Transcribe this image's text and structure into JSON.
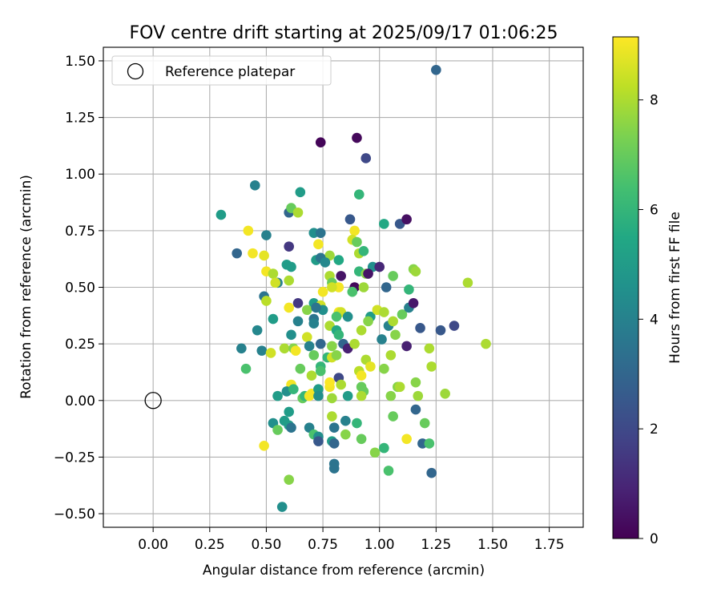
{
  "chart_data": {
    "type": "scatter",
    "title": "FOV centre drift starting at 2025/09/17 01:06:25",
    "xlabel": "Angular distance from reference (arcmin)",
    "ylabel": "Rotation from reference (arcmin)",
    "xlim": [
      -0.22,
      1.9
    ],
    "ylim": [
      -0.56,
      1.56
    ],
    "xticks": [
      0.0,
      0.25,
      0.5,
      0.75,
      1.0,
      1.25,
      1.5,
      1.75
    ],
    "xtick_labels": [
      "0.00",
      "0.25",
      "0.50",
      "0.75",
      "1.00",
      "1.25",
      "1.50",
      "1.75"
    ],
    "yticks": [
      -0.5,
      -0.25,
      0.0,
      0.25,
      0.5,
      0.75,
      1.0,
      1.25,
      1.5
    ],
    "ytick_labels": [
      "−0.50",
      "−0.25",
      "0.00",
      "0.25",
      "0.50",
      "0.75",
      "1.00",
      "1.25",
      "1.50"
    ],
    "grid": true,
    "legend": {
      "position": "top-left",
      "entries": [
        "Reference platepar"
      ]
    },
    "reference_point": {
      "x": 0.0,
      "y": 0.0
    },
    "colorbar": {
      "label": "Hours from first FF file",
      "min": 0,
      "max": 9.15,
      "ticks": [
        0,
        2,
        4,
        6,
        8
      ],
      "colormap": "viridis"
    },
    "series": [
      {
        "color_value_key": "h",
        "points": [
          {
            "x": 1.25,
            "y": 1.46,
            "h": 3.0
          },
          {
            "x": 0.74,
            "y": 1.14,
            "h": 0.1
          },
          {
            "x": 0.9,
            "y": 1.16,
            "h": 0.2
          },
          {
            "x": 0.94,
            "y": 1.07,
            "h": 2.0
          },
          {
            "x": 0.3,
            "y": 0.82,
            "h": 5.0
          },
          {
            "x": 0.45,
            "y": 0.95,
            "h": 4.0
          },
          {
            "x": 0.65,
            "y": 0.92,
            "h": 5.0
          },
          {
            "x": 0.91,
            "y": 0.91,
            "h": 6.0
          },
          {
            "x": 0.6,
            "y": 0.83,
            "h": 3.0
          },
          {
            "x": 0.61,
            "y": 0.85,
            "h": 7.0
          },
          {
            "x": 0.64,
            "y": 0.83,
            "h": 8.0
          },
          {
            "x": 0.87,
            "y": 0.8,
            "h": 2.5
          },
          {
            "x": 1.02,
            "y": 0.78,
            "h": 5.5
          },
          {
            "x": 1.09,
            "y": 0.78,
            "h": 2.5
          },
          {
            "x": 1.12,
            "y": 0.8,
            "h": 0.4
          },
          {
            "x": 0.42,
            "y": 0.75,
            "h": 9.0
          },
          {
            "x": 0.5,
            "y": 0.73,
            "h": 4.0
          },
          {
            "x": 0.71,
            "y": 0.74,
            "h": 4.5
          },
          {
            "x": 0.74,
            "y": 0.74,
            "h": 3.5
          },
          {
            "x": 0.89,
            "y": 0.75,
            "h": 9.0
          },
          {
            "x": 0.88,
            "y": 0.71,
            "h": 8.5
          },
          {
            "x": 0.9,
            "y": 0.7,
            "h": 7.0
          },
          {
            "x": 0.6,
            "y": 0.68,
            "h": 1.5
          },
          {
            "x": 0.73,
            "y": 0.69,
            "h": 9.0
          },
          {
            "x": 0.37,
            "y": 0.65,
            "h": 3.0
          },
          {
            "x": 0.44,
            "y": 0.65,
            "h": 9.0
          },
          {
            "x": 0.49,
            "y": 0.64,
            "h": 8.8
          },
          {
            "x": 0.78,
            "y": 0.64,
            "h": 7.8
          },
          {
            "x": 0.91,
            "y": 0.65,
            "h": 8.0
          },
          {
            "x": 0.93,
            "y": 0.66,
            "h": 6.0
          },
          {
            "x": 0.72,
            "y": 0.62,
            "h": 5.0
          },
          {
            "x": 0.74,
            "y": 0.63,
            "h": 3.5
          },
          {
            "x": 0.76,
            "y": 0.61,
            "h": 4.2
          },
          {
            "x": 0.82,
            "y": 0.62,
            "h": 5.5
          },
          {
            "x": 0.59,
            "y": 0.6,
            "h": 5.0
          },
          {
            "x": 0.61,
            "y": 0.59,
            "h": 5.0
          },
          {
            "x": 0.97,
            "y": 0.59,
            "h": 4.5
          },
          {
            "x": 1.0,
            "y": 0.59,
            "h": 1.0
          },
          {
            "x": 0.5,
            "y": 0.57,
            "h": 9.0
          },
          {
            "x": 0.53,
            "y": 0.56,
            "h": 8.0
          },
          {
            "x": 0.91,
            "y": 0.57,
            "h": 6.0
          },
          {
            "x": 0.94,
            "y": 0.56,
            "h": 7.5
          },
          {
            "x": 0.95,
            "y": 0.56,
            "h": 0.5
          },
          {
            "x": 1.06,
            "y": 0.55,
            "h": 7.0
          },
          {
            "x": 1.15,
            "y": 0.58,
            "h": 7.5
          },
          {
            "x": 1.16,
            "y": 0.57,
            "h": 7.8
          },
          {
            "x": 0.55,
            "y": 0.52,
            "h": 4.0
          },
          {
            "x": 0.54,
            "y": 0.52,
            "h": 8.5
          },
          {
            "x": 0.6,
            "y": 0.53,
            "h": 8.0
          },
          {
            "x": 0.78,
            "y": 0.55,
            "h": 8.0
          },
          {
            "x": 0.79,
            "y": 0.52,
            "h": 7.0
          },
          {
            "x": 0.83,
            "y": 0.55,
            "h": 0.5
          },
          {
            "x": 0.82,
            "y": 0.5,
            "h": 9.0
          },
          {
            "x": 0.79,
            "y": 0.5,
            "h": 8.5
          },
          {
            "x": 0.89,
            "y": 0.5,
            "h": 0.2
          },
          {
            "x": 0.93,
            "y": 0.5,
            "h": 7.8
          },
          {
            "x": 1.03,
            "y": 0.5,
            "h": 3.0
          },
          {
            "x": 1.13,
            "y": 0.49,
            "h": 6.0
          },
          {
            "x": 1.39,
            "y": 0.52,
            "h": 8.0
          },
          {
            "x": 0.75,
            "y": 0.48,
            "h": 9.0
          },
          {
            "x": 0.88,
            "y": 0.48,
            "h": 6.5
          },
          {
            "x": 0.49,
            "y": 0.46,
            "h": 3.5
          },
          {
            "x": 0.5,
            "y": 0.44,
            "h": 8.2
          },
          {
            "x": 0.64,
            "y": 0.43,
            "h": 1.5
          },
          {
            "x": 0.71,
            "y": 0.43,
            "h": 5.0
          },
          {
            "x": 0.74,
            "y": 0.42,
            "h": 8.5
          },
          {
            "x": 0.6,
            "y": 0.41,
            "h": 9.0
          },
          {
            "x": 0.68,
            "y": 0.4,
            "h": 7.5
          },
          {
            "x": 0.75,
            "y": 0.4,
            "h": 4.5
          },
          {
            "x": 0.72,
            "y": 0.41,
            "h": 3.5
          },
          {
            "x": 0.82,
            "y": 0.39,
            "h": 9.0
          },
          {
            "x": 0.83,
            "y": 0.39,
            "h": 8.5
          },
          {
            "x": 0.86,
            "y": 0.37,
            "h": 4.5
          },
          {
            "x": 0.96,
            "y": 0.37,
            "h": 5.0
          },
          {
            "x": 0.99,
            "y": 0.4,
            "h": 8.5
          },
          {
            "x": 1.02,
            "y": 0.39,
            "h": 8.0
          },
          {
            "x": 1.1,
            "y": 0.38,
            "h": 7.0
          },
          {
            "x": 1.13,
            "y": 0.41,
            "h": 4.0
          },
          {
            "x": 1.15,
            "y": 0.43,
            "h": 0.6
          },
          {
            "x": 0.53,
            "y": 0.36,
            "h": 5.0
          },
          {
            "x": 0.64,
            "y": 0.35,
            "h": 4.0
          },
          {
            "x": 0.71,
            "y": 0.36,
            "h": 3.5
          },
          {
            "x": 0.71,
            "y": 0.34,
            "h": 4.0
          },
          {
            "x": 0.81,
            "y": 0.37,
            "h": 6.5
          },
          {
            "x": 0.78,
            "y": 0.33,
            "h": 8.0
          },
          {
            "x": 0.95,
            "y": 0.35,
            "h": 7.5
          },
          {
            "x": 1.04,
            "y": 0.33,
            "h": 4.0
          },
          {
            "x": 1.06,
            "y": 0.35,
            "h": 8.0
          },
          {
            "x": 0.46,
            "y": 0.31,
            "h": 4.2
          },
          {
            "x": 0.61,
            "y": 0.29,
            "h": 4.5
          },
          {
            "x": 0.68,
            "y": 0.28,
            "h": 8.5
          },
          {
            "x": 0.81,
            "y": 0.31,
            "h": 5.5
          },
          {
            "x": 0.82,
            "y": 0.29,
            "h": 6.0
          },
          {
            "x": 0.92,
            "y": 0.31,
            "h": 8.0
          },
          {
            "x": 1.07,
            "y": 0.29,
            "h": 7.5
          },
          {
            "x": 1.18,
            "y": 0.32,
            "h": 2.5
          },
          {
            "x": 1.27,
            "y": 0.31,
            "h": 2.5
          },
          {
            "x": 1.33,
            "y": 0.33,
            "h": 2.0
          },
          {
            "x": 0.39,
            "y": 0.23,
            "h": 4.0
          },
          {
            "x": 0.48,
            "y": 0.22,
            "h": 4.0
          },
          {
            "x": 0.52,
            "y": 0.21,
            "h": 8.5
          },
          {
            "x": 0.58,
            "y": 0.23,
            "h": 8.0
          },
          {
            "x": 0.62,
            "y": 0.23,
            "h": 7.5
          },
          {
            "x": 0.63,
            "y": 0.22,
            "h": 9.0
          },
          {
            "x": 0.69,
            "y": 0.24,
            "h": 4.0
          },
          {
            "x": 0.74,
            "y": 0.25,
            "h": 3.0
          },
          {
            "x": 0.79,
            "y": 0.24,
            "h": 7.5
          },
          {
            "x": 0.84,
            "y": 0.25,
            "h": 3.0
          },
          {
            "x": 0.86,
            "y": 0.23,
            "h": 0.8
          },
          {
            "x": 0.89,
            "y": 0.25,
            "h": 8.0
          },
          {
            "x": 1.01,
            "y": 0.27,
            "h": 4.0
          },
          {
            "x": 1.12,
            "y": 0.24,
            "h": 0.8
          },
          {
            "x": 1.22,
            "y": 0.23,
            "h": 8.0
          },
          {
            "x": 1.47,
            "y": 0.25,
            "h": 8.0
          },
          {
            "x": 0.41,
            "y": 0.14,
            "h": 6.5
          },
          {
            "x": 0.71,
            "y": 0.2,
            "h": 7.0
          },
          {
            "x": 0.77,
            "y": 0.19,
            "h": 6.0
          },
          {
            "x": 0.79,
            "y": 0.19,
            "h": 8.5
          },
          {
            "x": 0.81,
            "y": 0.2,
            "h": 7.5
          },
          {
            "x": 0.94,
            "y": 0.18,
            "h": 8.0
          },
          {
            "x": 1.05,
            "y": 0.2,
            "h": 8.0
          },
          {
            "x": 0.65,
            "y": 0.14,
            "h": 7.0
          },
          {
            "x": 0.7,
            "y": 0.11,
            "h": 8.0
          },
          {
            "x": 0.74,
            "y": 0.15,
            "h": 6.0
          },
          {
            "x": 0.74,
            "y": 0.13,
            "h": 6.5
          },
          {
            "x": 0.91,
            "y": 0.13,
            "h": 8.2
          },
          {
            "x": 0.92,
            "y": 0.11,
            "h": 9.0
          },
          {
            "x": 0.96,
            "y": 0.15,
            "h": 8.8
          },
          {
            "x": 1.02,
            "y": 0.14,
            "h": 7.5
          },
          {
            "x": 0.82,
            "y": 0.1,
            "h": 2.0
          },
          {
            "x": 1.16,
            "y": 0.08,
            "h": 7.5
          },
          {
            "x": 1.23,
            "y": 0.15,
            "h": 8.0
          },
          {
            "x": 0.61,
            "y": 0.07,
            "h": 9.0
          },
          {
            "x": 0.78,
            "y": 0.06,
            "h": 9.0
          },
          {
            "x": 0.78,
            "y": 0.08,
            "h": 9.1
          },
          {
            "x": 0.83,
            "y": 0.07,
            "h": 8.0
          },
          {
            "x": 0.92,
            "y": 0.06,
            "h": 7.0
          },
          {
            "x": 0.93,
            "y": 0.04,
            "h": 7.0
          },
          {
            "x": 1.08,
            "y": 0.06,
            "h": 7.5
          },
          {
            "x": 1.09,
            "y": 0.06,
            "h": 8.0
          },
          {
            "x": 1.29,
            "y": 0.03,
            "h": 7.8
          },
          {
            "x": 0.55,
            "y": 0.02,
            "h": 5.0
          },
          {
            "x": 0.59,
            "y": 0.04,
            "h": 4.5
          },
          {
            "x": 0.62,
            "y": 0.05,
            "h": 6.0
          },
          {
            "x": 0.66,
            "y": 0.01,
            "h": 7.0
          },
          {
            "x": 0.67,
            "y": 0.02,
            "h": 6.0
          },
          {
            "x": 0.69,
            "y": 0.02,
            "h": 9.0
          },
          {
            "x": 0.7,
            "y": 0.03,
            "h": 9.0
          },
          {
            "x": 0.73,
            "y": 0.05,
            "h": 5.0
          },
          {
            "x": 0.73,
            "y": 0.02,
            "h": 4.5
          },
          {
            "x": 0.79,
            "y": 0.01,
            "h": 7.8
          },
          {
            "x": 0.86,
            "y": 0.02,
            "h": 5.0
          },
          {
            "x": 0.92,
            "y": 0.02,
            "h": 8.0
          },
          {
            "x": 1.05,
            "y": 0.02,
            "h": 7.5
          },
          {
            "x": 1.17,
            "y": 0.02,
            "h": 7.8
          },
          {
            "x": 0.53,
            "y": -0.1,
            "h": 4.5
          },
          {
            "x": 0.55,
            "y": -0.13,
            "h": 7.0
          },
          {
            "x": 0.58,
            "y": -0.09,
            "h": 5.0
          },
          {
            "x": 0.6,
            "y": -0.05,
            "h": 5.0
          },
          {
            "x": 0.6,
            "y": -0.11,
            "h": 5.0
          },
          {
            "x": 0.61,
            "y": -0.12,
            "h": 3.5
          },
          {
            "x": 0.69,
            "y": -0.12,
            "h": 4.0
          },
          {
            "x": 0.71,
            "y": -0.15,
            "h": 6.5
          },
          {
            "x": 0.73,
            "y": -0.16,
            "h": 4.5
          },
          {
            "x": 0.73,
            "y": -0.18,
            "h": 2.5
          },
          {
            "x": 0.79,
            "y": -0.07,
            "h": 8.0
          },
          {
            "x": 0.8,
            "y": -0.12,
            "h": 3.5
          },
          {
            "x": 0.79,
            "y": -0.18,
            "h": 5.0
          },
          {
            "x": 0.8,
            "y": -0.19,
            "h": 3.0
          },
          {
            "x": 0.85,
            "y": -0.09,
            "h": 4.0
          },
          {
            "x": 0.85,
            "y": -0.15,
            "h": 7.5
          },
          {
            "x": 0.9,
            "y": -0.1,
            "h": 6.0
          },
          {
            "x": 0.92,
            "y": -0.17,
            "h": 7.0
          },
          {
            "x": 0.98,
            "y": -0.23,
            "h": 7.5
          },
          {
            "x": 1.02,
            "y": -0.21,
            "h": 6.0
          },
          {
            "x": 1.06,
            "y": -0.07,
            "h": 7.0
          },
          {
            "x": 1.12,
            "y": -0.17,
            "h": 9.0
          },
          {
            "x": 1.16,
            "y": -0.04,
            "h": 3.0
          },
          {
            "x": 1.19,
            "y": -0.19,
            "h": 3.0
          },
          {
            "x": 1.2,
            "y": -0.1,
            "h": 7.0
          },
          {
            "x": 1.22,
            "y": -0.19,
            "h": 6.5
          },
          {
            "x": 0.49,
            "y": -0.2,
            "h": 9.0
          },
          {
            "x": 0.8,
            "y": -0.28,
            "h": 3.5
          },
          {
            "x": 0.8,
            "y": -0.3,
            "h": 3.5
          },
          {
            "x": 1.04,
            "y": -0.31,
            "h": 6.5
          },
          {
            "x": 1.23,
            "y": -0.32,
            "h": 3.0
          },
          {
            "x": 0.6,
            "y": -0.35,
            "h": 7.5
          },
          {
            "x": 0.57,
            "y": -0.47,
            "h": 4.5
          }
        ]
      }
    ]
  }
}
